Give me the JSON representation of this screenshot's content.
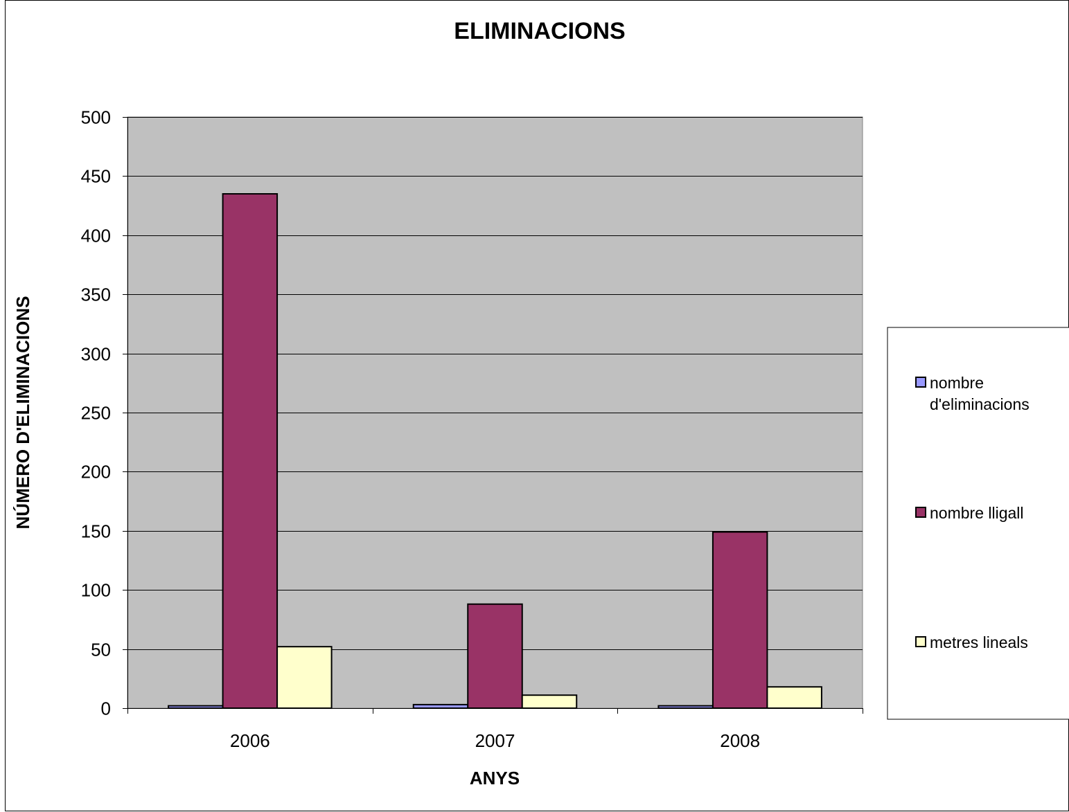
{
  "chart_data": {
    "type": "bar",
    "title": "ELIMINACIONS",
    "xlabel": "ANYS",
    "ylabel": "NÚMERO D'ELIMINACIONS",
    "categories": [
      "2006",
      "2007",
      "2008"
    ],
    "series": [
      {
        "name": "nombre d'eliminacions",
        "legend_lines": [
          "nombre",
          "d'eliminacions"
        ],
        "color": "#9999ff",
        "values": [
          2,
          3,
          2
        ]
      },
      {
        "name": "nombre lligall",
        "legend_lines": [
          "nombre lligall"
        ],
        "color": "#993366",
        "values": [
          435,
          88,
          149
        ]
      },
      {
        "name": "metres lineals",
        "legend_lines": [
          "metres lineals"
        ],
        "color": "#ffffcc",
        "values": [
          52,
          11,
          18
        ]
      }
    ],
    "ylim": [
      0,
      500
    ],
    "yticks": [
      0,
      50,
      100,
      150,
      200,
      250,
      300,
      350,
      400,
      450,
      500
    ],
    "grid": true,
    "legend_position": "right",
    "plot_background": "#c0c0c0"
  }
}
